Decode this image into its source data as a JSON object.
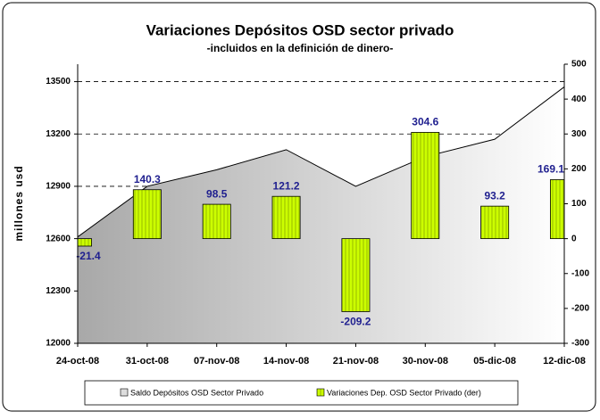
{
  "chart_data": {
    "type": "area_bar",
    "title": "Variaciones Depósitos OSD sector privado",
    "subtitle": "-incluidos en la definición de dinero-",
    "ylabel": "millones usd",
    "categories": [
      "24-oct-08",
      "31-oct-08",
      "07-nov-08",
      "14-nov-08",
      "21-nov-08",
      "30-nov-08",
      "05-dic-08",
      "12-dic-08"
    ],
    "series": [
      {
        "name": "Saldo Depósitos OSD Sector Privado",
        "color": "#bdbdbd",
        "type": "area",
        "values": [
          12610,
          12900,
          12995,
          13110,
          12900,
          13070,
          13170,
          13470
        ]
      },
      {
        "name": "Variaciones Dep. OSD Sector Privado (der)",
        "color": "#ccff00",
        "type": "bar",
        "axis": "y2",
        "values": [
          -21.4,
          140.3,
          98.5,
          121.2,
          -209.2,
          304.6,
          93.2,
          169.1
        ]
      }
    ],
    "ylim": [
      12000,
      13600
    ],
    "yticks": [
      12000,
      12300,
      12600,
      12900,
      13200,
      13500
    ],
    "y2lim": [
      -300,
      500
    ],
    "y2ticks": [
      -300,
      -200,
      -100,
      0,
      100,
      200,
      300,
      400,
      500
    ],
    "grid": true,
    "legend": "bottom"
  }
}
